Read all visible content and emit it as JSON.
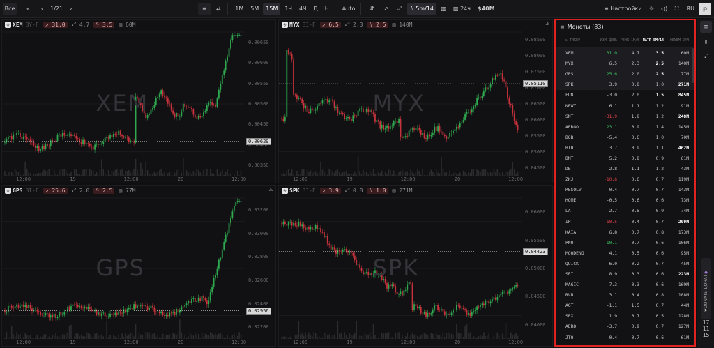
{
  "topbar": {
    "all": "Все",
    "page": "1/21",
    "intervals": [
      "1M",
      "5M",
      "15M",
      "1Ч",
      "4Ч",
      "Д",
      "Н"
    ],
    "active_interval": "15M",
    "auto": "Auto",
    "natr_label": "5m/14",
    "vol_period": "24ч",
    "vol_amount": "$40M",
    "settings": "Настройки",
    "lang": "RU"
  },
  "charts": [
    {
      "ticker": "XEM",
      "exchange": "BY-F",
      "change": "31.0",
      "range": "4.7",
      "natr": "3.5",
      "volume": "60M",
      "watermark": "XEM",
      "price": "0.00629",
      "warning": false,
      "yticks": [
        "0.00650",
        "0.00600",
        "0.00550",
        "0.00500",
        "0.00450",
        "0.00400",
        "0.00350"
      ],
      "xticks": [
        "12:00",
        "19",
        "12:00",
        "20",
        "12:00"
      ]
    },
    {
      "ticker": "MYX",
      "exchange": "BI-F",
      "change": "6.5",
      "range": "2.3",
      "natr": "2.5",
      "volume": "140M",
      "watermark": "MYX",
      "price": "0.05110",
      "warning": true,
      "yticks": [
        "0.08500",
        "0.08000",
        "0.07500",
        "0.07000",
        "0.06500",
        "0.06000",
        "0.05500",
        "0.05000",
        "0.04500"
      ],
      "xticks": [
        "12:00",
        "19",
        "12:00",
        "20",
        "12:00"
      ]
    },
    {
      "ticker": "GPS",
      "exchange": "BI-F",
      "change": "25.6",
      "range": "2.0",
      "natr": "2.5",
      "volume": "77M",
      "watermark": "GPS",
      "price": "0.02956",
      "warning": true,
      "yticks": [
        "0.03200",
        "0.03000",
        "0.02800",
        "0.02600",
        "0.02400",
        "0.02200"
      ],
      "xticks": [
        "12:00",
        "19",
        "12:00",
        "20",
        "12:00"
      ]
    },
    {
      "ticker": "SPK",
      "exchange": "BI-F",
      "change": "3.9",
      "range": "0.8",
      "natr": "1.0",
      "volume": "271M",
      "watermark": "SPK",
      "price": "0.04423",
      "warning": false,
      "yticks": [
        "0.06000",
        "0.05500",
        "0.05000",
        "0.04500",
        "0.04000"
      ],
      "xticks": [
        "12:00",
        "19",
        "12:00",
        "20",
        "12:00"
      ]
    }
  ],
  "coins": {
    "title": "Монеты (83)",
    "headers": {
      "ticker": "ТИКЕР",
      "change": "ИЗМ ДЕНЬ",
      "range": "РЕНЖ 1М/5",
      "natr": "NATR 5M/14",
      "volume": "ОБЪЕМ 24Ч"
    },
    "rows": [
      {
        "t": "XEM",
        "c": "31.0",
        "r": "4.7",
        "n": "3.5",
        "v": "60M",
        "cs": "green",
        "nb": true,
        "vb": false,
        "hl": true
      },
      {
        "t": "MYX",
        "c": "6.5",
        "r": "2.3",
        "n": "2.5",
        "v": "140M",
        "cs": "",
        "nb": true,
        "vb": false,
        "hl": true
      },
      {
        "t": "GPS",
        "c": "25.6",
        "r": "2.0",
        "n": "2.5",
        "v": "77M",
        "cs": "green",
        "nb": true,
        "vb": false,
        "hl": true
      },
      {
        "t": "SPK",
        "c": "3.9",
        "r": "0.8",
        "n": "1.0",
        "v": "271M",
        "cs": "",
        "nb": false,
        "vb": true,
        "hl": true
      },
      {
        "t": "FUN",
        "c": "-3.0",
        "r": "2.0",
        "n": "1.5",
        "v": "845M",
        "cs": "",
        "nb": true,
        "vb": true,
        "hl": false
      },
      {
        "t": "NEWT",
        "c": "6.1",
        "r": "1.1",
        "n": "1.2",
        "v": "91M",
        "cs": "",
        "nb": false,
        "vb": false,
        "hl": false
      },
      {
        "t": "SNT",
        "c": "-31.9",
        "r": "1.8",
        "n": "1.2",
        "v": "248M",
        "cs": "red",
        "nb": false,
        "vb": true,
        "hl": false
      },
      {
        "t": "AERGO",
        "c": "23.1",
        "r": "0.9",
        "n": "1.4",
        "v": "145M",
        "cs": "green",
        "nb": false,
        "vb": false,
        "hl": false
      },
      {
        "t": "BOB",
        "c": "-5.4",
        "r": "0.6",
        "n": "1.0",
        "v": "70M",
        "cs": "",
        "nb": false,
        "vb": false,
        "hl": false
      },
      {
        "t": "BID",
        "c": "3.7",
        "r": "0.9",
        "n": "1.1",
        "v": "462M",
        "cs": "",
        "nb": false,
        "vb": true,
        "hl": false
      },
      {
        "t": "BMT",
        "c": "5.2",
        "r": "0.8",
        "n": "0.9",
        "v": "61M",
        "cs": "",
        "nb": false,
        "vb": false,
        "hl": false
      },
      {
        "t": "DBT",
        "c": "2.8",
        "r": "1.1",
        "n": "1.2",
        "v": "43M",
        "cs": "",
        "nb": false,
        "vb": false,
        "hl": false
      },
      {
        "t": "ZKJ",
        "c": "-10.6",
        "r": "0.6",
        "n": "0.7",
        "v": "119M",
        "cs": "red",
        "nb": false,
        "vb": false,
        "hl": false
      },
      {
        "t": "RESOLV",
        "c": "0.4",
        "r": "0.7",
        "n": "0.7",
        "v": "143M",
        "cs": "",
        "nb": false,
        "vb": false,
        "hl": false
      },
      {
        "t": "HOME",
        "c": "-0.5",
        "r": "0.6",
        "n": "0.6",
        "v": "73M",
        "cs": "",
        "nb": false,
        "vb": false,
        "hl": false
      },
      {
        "t": "LA",
        "c": "2.7",
        "r": "0.5",
        "n": "0.9",
        "v": "74M",
        "cs": "",
        "nb": false,
        "vb": false,
        "hl": false
      },
      {
        "t": "IP",
        "c": "-10.5",
        "r": "0.4",
        "n": "0.7",
        "v": "209M",
        "cs": "red",
        "nb": false,
        "vb": true,
        "hl": false
      },
      {
        "t": "KAIA",
        "c": "6.8",
        "r": "0.7",
        "n": "0.8",
        "v": "173M",
        "cs": "",
        "nb": false,
        "vb": false,
        "hl": false
      },
      {
        "t": "PNUT",
        "c": "10.1",
        "r": "0.7",
        "n": "0.6",
        "v": "106M",
        "cs": "green",
        "nb": false,
        "vb": false,
        "hl": false
      },
      {
        "t": "MOODENG",
        "c": "4.1",
        "r": "0.5",
        "n": "0.6",
        "v": "95M",
        "cs": "",
        "nb": false,
        "vb": false,
        "hl": false
      },
      {
        "t": "QUICK",
        "c": "6.0",
        "r": "0.2",
        "n": "0.7",
        "v": "45M",
        "cs": "",
        "nb": false,
        "vb": false,
        "hl": false
      },
      {
        "t": "SEI",
        "c": "8.9",
        "r": "0.3",
        "n": "0.6",
        "v": "223M",
        "cs": "",
        "nb": false,
        "vb": true,
        "hl": false
      },
      {
        "t": "MAGIC",
        "c": "7.3",
        "r": "0.3",
        "n": "0.6",
        "v": "169M",
        "cs": "",
        "nb": false,
        "vb": false,
        "hl": false
      },
      {
        "t": "RVN",
        "c": "3.1",
        "r": "0.4",
        "n": "0.8",
        "v": "108M",
        "cs": "",
        "nb": false,
        "vb": false,
        "hl": false
      },
      {
        "t": "AGT",
        "c": "-1.1",
        "r": "1.5",
        "n": "0.7",
        "v": "44M",
        "cs": "",
        "nb": false,
        "vb": false,
        "hl": false
      },
      {
        "t": "SPX",
        "c": "1.9",
        "r": "0.7",
        "n": "0.5",
        "v": "128M",
        "cs": "",
        "nb": false,
        "vb": false,
        "hl": false
      },
      {
        "t": "AERO",
        "c": "-3.7",
        "r": "0.9",
        "n": "0.7",
        "v": "127M",
        "cs": "",
        "nb": false,
        "vb": false,
        "hl": false
      },
      {
        "t": "JTO",
        "c": "0.4",
        "r": "0.7",
        "n": "0.6",
        "v": "61M",
        "cs": "",
        "nb": false,
        "vb": false,
        "hl": false
      }
    ]
  },
  "donate": "DONATE ДОНАТ",
  "clock": [
    "17",
    "11",
    "15"
  ]
}
